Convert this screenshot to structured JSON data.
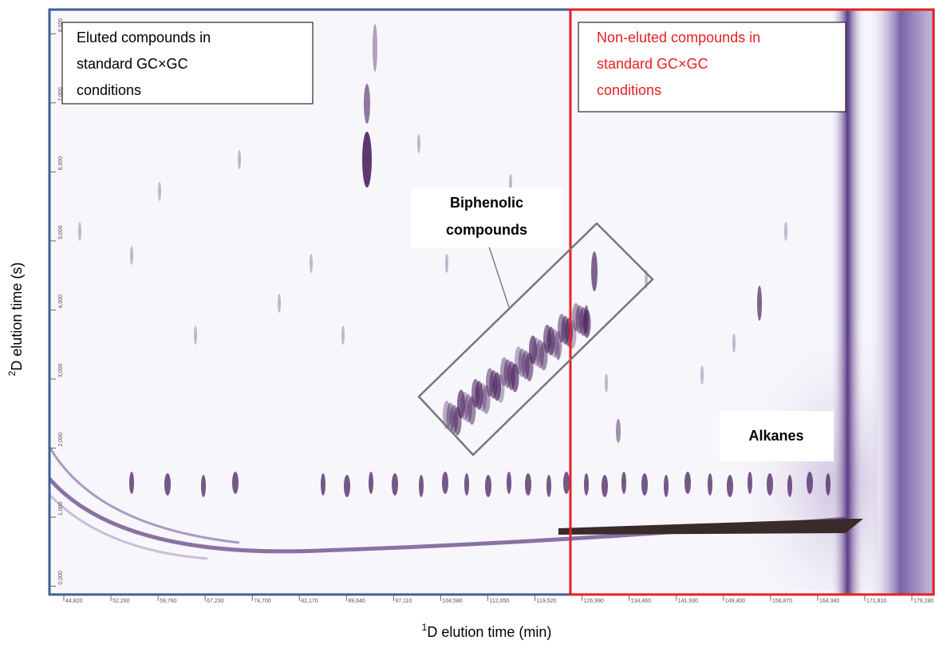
{
  "chart_data": {
    "type": "contour",
    "x_label": {
      "sup": "1",
      "text": "D elution time (min)"
    },
    "y_label": {
      "sup": "2",
      "text": "D elution time (s)"
    },
    "xlim": [
      42.54,
      182.95
    ],
    "ylim": [
      -0.12,
      8.35
    ],
    "xticks": [
      {
        "value": 44.82,
        "label": "44,820"
      },
      {
        "value": 52.29,
        "label": "52,290"
      },
      {
        "value": 59.76,
        "label": "59,760"
      },
      {
        "value": 67.23,
        "label": "67,230"
      },
      {
        "value": 74.7,
        "label": "74,700"
      },
      {
        "value": 82.17,
        "label": "82,170"
      },
      {
        "value": 89.64,
        "label": "89,640"
      },
      {
        "value": 97.11,
        "label": "97,110"
      },
      {
        "value": 104.58,
        "label": "104,580"
      },
      {
        "value": 112.05,
        "label": "112,050"
      },
      {
        "value": 119.52,
        "label": "119,520"
      },
      {
        "value": 126.99,
        "label": "126,990"
      },
      {
        "value": 134.46,
        "label": "134,460"
      },
      {
        "value": 141.93,
        "label": "141,930"
      },
      {
        "value": 149.4,
        "label": "149,400"
      },
      {
        "value": 156.87,
        "label": "156,870"
      },
      {
        "value": 164.34,
        "label": "164,340"
      },
      {
        "value": 171.81,
        "label": "171,810"
      },
      {
        "value": 179.28,
        "label": "179,280"
      }
    ],
    "yticks": [
      {
        "value": 0,
        "label": "0,000"
      },
      {
        "value": 1,
        "label": "1,000"
      },
      {
        "value": 2,
        "label": "2,000"
      },
      {
        "value": 3,
        "label": "3,000"
      },
      {
        "value": 4,
        "label": "4,000"
      },
      {
        "value": 5,
        "label": "5,000"
      },
      {
        "value": 6,
        "label": "6,000"
      },
      {
        "value": 7,
        "label": "7,000"
      },
      {
        "value": 8,
        "label": "8,000"
      }
    ],
    "annotations": {
      "eluted": [
        "Eluted compounds in",
        "standard GC×GC",
        "conditions"
      ],
      "non_eluted": [
        "Non-eluted compounds in",
        "standard GC×GC",
        "conditions"
      ],
      "biphenolic": [
        "Biphenolic",
        "compounds"
      ],
      "alkanes": "Alkanes"
    }
  }
}
